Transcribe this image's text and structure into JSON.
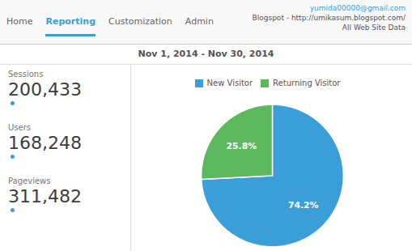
{
  "chart_data": {
    "type": "pie",
    "title": "Nov 1, 2014 - Nov 30, 2014",
    "categories": [
      "New Visitor",
      "Returning Visitor"
    ],
    "values": [
      74.2,
      25.8
    ],
    "value_labels": [
      "74.2%",
      "25.8%"
    ],
    "colors": [
      "#3a9fd8",
      "#5cb85c"
    ],
    "data_labels": true,
    "legend": "top",
    "annotations": [
      "Home",
      "Reporting",
      "Customization",
      "Admin",
      "yumida00000@gmail.com",
      "Blogspot - http://umikasum.blogspot.com/",
      "All Web Site Data",
      "Sessions",
      "200,433",
      "Users",
      "168,248",
      "Pageviews",
      "311,482"
    ]
  }
}
